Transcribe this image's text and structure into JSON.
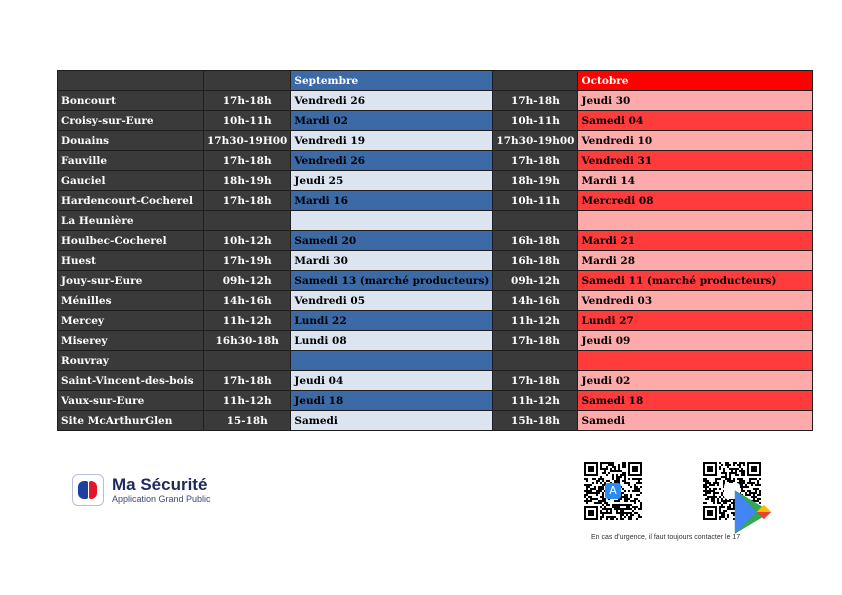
{
  "months": {
    "first": "Septembre",
    "second": "Octobre"
  },
  "rows": [
    {
      "commune": "Boncourt",
      "h1": "17h-18h",
      "d1": "Vendredi 26",
      "h2": "17h-18h",
      "d2": "Jeudi 30"
    },
    {
      "commune": "Croisy-sur-Eure",
      "h1": "10h-11h",
      "d1": "Mardi 02",
      "h2": "10h-11h",
      "d2": "Samedi 04"
    },
    {
      "commune": "Douains",
      "h1": "17h30-19H00",
      "d1": "Vendredi 19",
      "h2": "17h30-19h00",
      "d2": "Vendredi 10"
    },
    {
      "commune": "Fauville",
      "h1": "17h-18h",
      "d1": "Vendredi 26",
      "h2": "17h-18h",
      "d2": "Vendredi 31"
    },
    {
      "commune": "Gauciel",
      "h1": "18h-19h",
      "d1": "Jeudi 25",
      "h2": "18h-19h",
      "d2": "Mardi 14"
    },
    {
      "commune": "Hardencourt-Cocherel",
      "h1": "17h-18h",
      "d1": "Mardi 16",
      "h2": "10h-11h",
      "d2": "Mercredi 08"
    },
    {
      "commune": "La Heunière",
      "h1": "",
      "d1": "",
      "h2": "",
      "d2": ""
    },
    {
      "commune": "Houlbec-Cocherel",
      "h1": "10h-12h",
      "d1": "Samedi 20",
      "h2": "16h-18h",
      "d2": "Mardi 21"
    },
    {
      "commune": "Huest",
      "h1": "17h-19h",
      "d1": "Mardi 30",
      "h2": "16h-18h",
      "d2": "Mardi 28"
    },
    {
      "commune": "Jouy-sur-Eure",
      "h1": "09h-12h",
      "d1": "Samedi 13 (marché producteurs)",
      "h2": "09h-12h",
      "d2": "Samedi 11 (marché producteurs)"
    },
    {
      "commune": "Ménilles",
      "h1": "14h-16h",
      "d1": "Vendredi 05",
      "h2": "14h-16h",
      "d2": "Vendredi 03"
    },
    {
      "commune": "Mercey",
      "h1": "11h-12h",
      "d1": "Lundi 22",
      "h2": "11h-12h",
      "d2": "Lundi 27"
    },
    {
      "commune": "Miserey",
      "h1": "16h30-18h",
      "d1": "Lundi 08",
      "h2": "17h-18h",
      "d2": "Jeudi 09"
    },
    {
      "commune": "Rouvray",
      "h1": "",
      "d1": "",
      "h2": "",
      "d2": ""
    },
    {
      "commune": "Saint-Vincent-des-bois",
      "h1": "17h-18h",
      "d1": "Jeudi 04",
      "h2": "17h-18h",
      "d2": "Jeudi 02"
    },
    {
      "commune": "Vaux-sur-Eure",
      "h1": "11h-12h",
      "d1": "Jeudi 18",
      "h2": "11h-12h",
      "d2": "Samedi 18"
    },
    {
      "commune": "Site McArthurGlen",
      "h1": "15-18h",
      "d1": "Samedi",
      "h2": "15h-18h",
      "d2": "Samedi"
    }
  ],
  "colors": {
    "sep_mid": "#3b6aa6",
    "sep_light": "#dbe4ef",
    "oct_mid": "#ff3b3b",
    "oct_light": "#ffaaaa",
    "dark": "#3a3a3a"
  },
  "logo": {
    "title": "Ma Sécurité",
    "subtitle": "Application Grand Public",
    "icon": "ma-securite-logo-icon"
  },
  "qr_codes": [
    {
      "name": "app-store-qr",
      "badge_icon": "app-store-icon"
    },
    {
      "name": "google-play-qr",
      "badge_icon": "google-play-icon"
    }
  ],
  "footer_note": "En cas d'urgence, il faut toujours contacter le 17"
}
